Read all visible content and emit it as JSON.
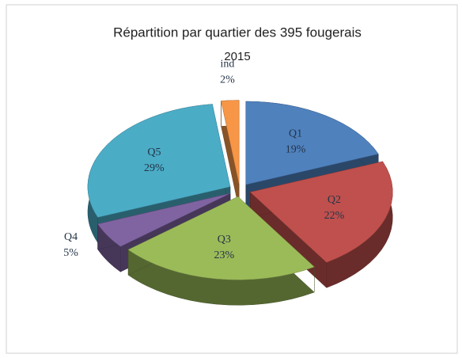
{
  "chart_data": {
    "type": "pie",
    "title": "Répartition par quartier des 395 fougerais",
    "subtitle": "2015",
    "categories": [
      "Q1",
      "Q2",
      "Q3",
      "Q4",
      "Q5",
      "ind"
    ],
    "values": [
      19,
      22,
      23,
      5,
      29,
      2
    ],
    "value_labels": [
      "19%",
      "22%",
      "23%",
      "5%",
      "29%",
      "2%"
    ],
    "colors": [
      "#4f81bd",
      "#c0504d",
      "#9bbb59",
      "#8064a2",
      "#4bacc6",
      "#f79646"
    ]
  }
}
